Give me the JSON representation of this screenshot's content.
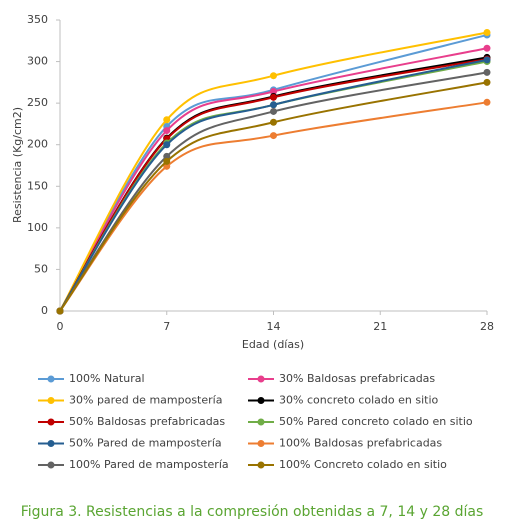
{
  "chart_data": {
    "type": "line",
    "title": "Figura 3. Resistencias a la compresión obtenidas a 7, 14 y 28 días",
    "xlabel": "Edad (días)",
    "ylabel": "Resistencia (Kg/cm2)",
    "x": [
      0,
      7,
      14,
      28
    ],
    "xlim": [
      0,
      28
    ],
    "xticks": [
      0,
      7,
      14,
      21,
      28
    ],
    "ylim": [
      0,
      350
    ],
    "yticks": [
      0,
      50,
      100,
      150,
      200,
      250,
      300,
      350
    ],
    "series": [
      {
        "name": "100% Natural",
        "color": "#5b9bd5",
        "values": [
          0,
          222,
          266,
          332
        ]
      },
      {
        "name": "30% Baldosas prefabricadas",
        "color": "#e83e8c",
        "values": [
          0,
          217,
          264,
          316
        ]
      },
      {
        "name": "30% pared de mampostería",
        "color": "#ffc000",
        "values": [
          0,
          230,
          283,
          335
        ]
      },
      {
        "name": "30% concreto colado en sitio",
        "color": "#000000",
        "values": [
          0,
          208,
          258,
          305
        ]
      },
      {
        "name": "50% Baldosas prefabricadas",
        "color": "#c00000",
        "values": [
          0,
          207,
          257,
          303
        ]
      },
      {
        "name": "50% Pared concreto colado en sitio",
        "color": "#70ad47",
        "values": [
          0,
          202,
          248,
          300
        ]
      },
      {
        "name": "50% Pared de mampostería",
        "color": "#255e91",
        "values": [
          0,
          200,
          248,
          302
        ]
      },
      {
        "name": "100% Baldosas prefabricadas",
        "color": "#ed7d31",
        "values": [
          0,
          174,
          211,
          251
        ]
      },
      {
        "name": "100% Pared de mampostería",
        "color": "#636363",
        "values": [
          0,
          186,
          240,
          287
        ]
      },
      {
        "name": "100% Concreto colado en sitio",
        "color": "#997300",
        "values": [
          0,
          180,
          227,
          275
        ]
      }
    ]
  }
}
